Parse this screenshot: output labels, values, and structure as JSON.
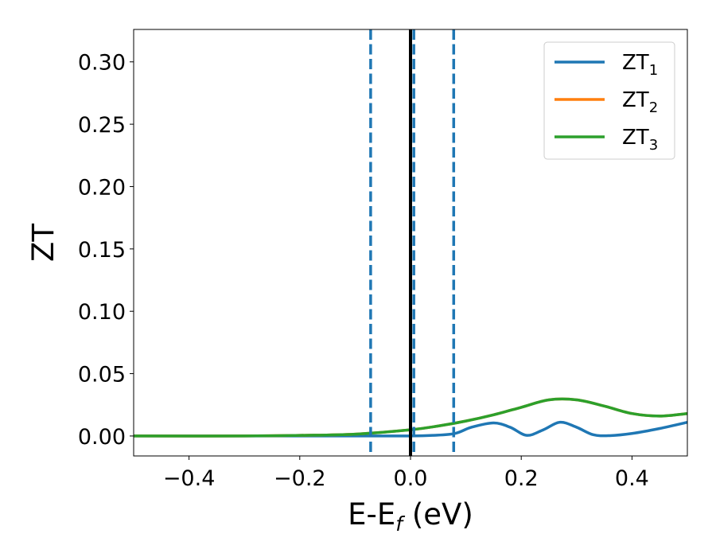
{
  "chart_data": {
    "type": "line",
    "title": "",
    "xlabel": {
      "main": "E-E",
      "sub": "f",
      "suffix": " (eV)"
    },
    "ylabel": "ZT",
    "xlim": [
      -0.5,
      0.5
    ],
    "ylim": [
      -0.016,
      0.326
    ],
    "x_ticks": [
      -0.4,
      -0.2,
      0.0,
      0.2,
      0.4
    ],
    "x_tick_labels": [
      "−0.4",
      "−0.2",
      "0.0",
      "0.2",
      "0.4"
    ],
    "y_ticks": [
      0.0,
      0.05,
      0.1,
      0.15,
      0.2,
      0.25,
      0.3
    ],
    "y_tick_labels": [
      "0.00",
      "0.05",
      "0.10",
      "0.15",
      "0.20",
      "0.25",
      "0.30"
    ],
    "grid": false,
    "legend_position": "top-right",
    "vertical_lines": [
      {
        "x": 0.0,
        "style": "solid",
        "color": "#000000"
      },
      {
        "x": -0.072,
        "style": "dashed",
        "color": "#1f77b4"
      },
      {
        "x": 0.006,
        "style": "dashed",
        "color": "#1f77b4"
      },
      {
        "x": 0.078,
        "style": "dashed",
        "color": "#1f77b4"
      }
    ],
    "series": [
      {
        "name": "ZT",
        "sub": "1",
        "color": "#1f77b4",
        "x": [
          -0.5,
          -0.3,
          -0.1,
          0.0,
          0.04,
          0.08,
          0.11,
          0.15,
          0.18,
          0.21,
          0.24,
          0.27,
          0.3,
          0.33,
          0.36,
          0.4,
          0.45,
          0.5
        ],
        "y": [
          0.0,
          0.0,
          0.0,
          0.0,
          0.0005,
          0.002,
          0.007,
          0.0105,
          0.007,
          0.0005,
          0.005,
          0.011,
          0.007,
          0.001,
          0.0003,
          0.002,
          0.006,
          0.011
        ]
      },
      {
        "name": "ZT",
        "sub": "2",
        "color": "#ff7f0e",
        "x": [
          -0.5,
          -0.3,
          -0.2,
          -0.1,
          0.0,
          0.05,
          0.1,
          0.15,
          0.2,
          0.25,
          0.3,
          0.35,
          0.4,
          0.45,
          0.5
        ],
        "y": [
          0.0,
          0.0,
          0.0005,
          0.0015,
          0.005,
          0.008,
          0.012,
          0.017,
          0.023,
          0.029,
          0.029,
          0.024,
          0.018,
          0.016,
          0.018
        ]
      },
      {
        "name": "ZT",
        "sub": "3",
        "color": "#2ca02c",
        "x": [
          -0.5,
          -0.3,
          -0.2,
          -0.1,
          0.0,
          0.05,
          0.1,
          0.15,
          0.2,
          0.25,
          0.3,
          0.35,
          0.4,
          0.45,
          0.5
        ],
        "y": [
          0.0,
          0.0,
          0.0005,
          0.0015,
          0.005,
          0.008,
          0.012,
          0.017,
          0.023,
          0.029,
          0.029,
          0.024,
          0.018,
          0.016,
          0.018
        ]
      }
    ]
  }
}
